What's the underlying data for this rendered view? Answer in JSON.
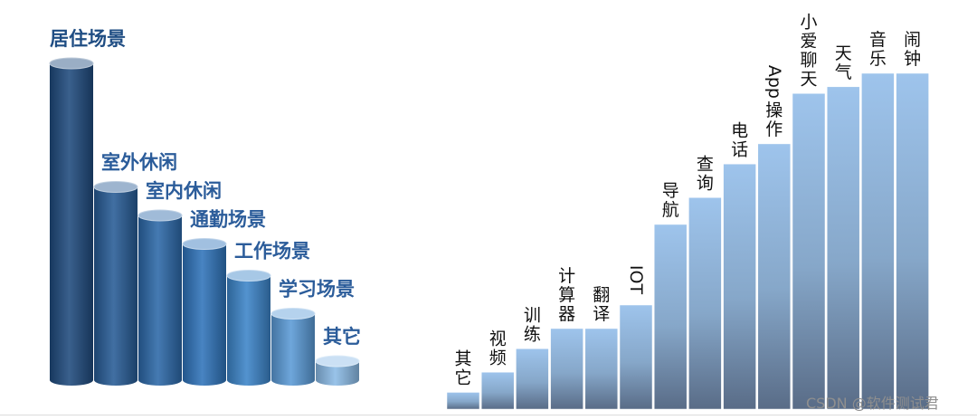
{
  "chart_data": [
    {
      "type": "bar",
      "style": "cylinder",
      "categories": [
        "居住场景",
        "室外休闲",
        "室内休闲",
        "通勤场景",
        "工作场景",
        "学习场景",
        "其它"
      ],
      "values": [
        100,
        61,
        52,
        43,
        33,
        21,
        6
      ],
      "colors": [
        "#1f4a7d",
        "#275b95",
        "#2c68a8",
        "#2f73ba",
        "#3c84c8",
        "#5a9ad6",
        "#8bbbe6"
      ],
      "title": "",
      "xlabel": "",
      "ylabel": "",
      "grid": false
    },
    {
      "type": "bar",
      "categories": [
        "其它",
        "视频",
        "训练",
        "计算器",
        "翻译",
        "IOT",
        "导航",
        "查询",
        "电话",
        "App操作",
        "小爱聊天",
        "天气",
        "音乐",
        "闹钟"
      ],
      "values": [
        5,
        11,
        18,
        24,
        24,
        31,
        55,
        63,
        73,
        79,
        94,
        96,
        100,
        100
      ],
      "color_top": "#9ec4ec",
      "color_bottom": "#596c87",
      "title": "",
      "xlabel": "",
      "ylabel": "",
      "grid": false
    }
  ],
  "watermark": "CSDN @软件测试君"
}
